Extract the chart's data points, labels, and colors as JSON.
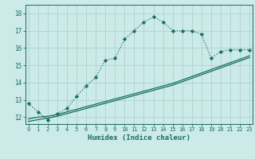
{
  "background_color": "#cceae8",
  "grid_color": "#aad4d0",
  "line_color": "#1a6e60",
  "x_label": "Humidex (Indice chaleur)",
  "x_ticks": [
    0,
    1,
    2,
    3,
    4,
    5,
    6,
    7,
    8,
    9,
    10,
    11,
    12,
    13,
    14,
    15,
    16,
    17,
    18,
    19,
    20,
    21,
    22,
    23
  ],
  "y_ticks": [
    12,
    13,
    14,
    15,
    16,
    17,
    18
  ],
  "ylim": [
    11.6,
    18.5
  ],
  "xlim": [
    -0.3,
    23.3
  ],
  "curve1_x": [
    0,
    1,
    2,
    3,
    4,
    5,
    6,
    7,
    8,
    9,
    10,
    11,
    12,
    13,
    14,
    15,
    16,
    17,
    18,
    19,
    20,
    21,
    22,
    23
  ],
  "curve1_y": [
    12.8,
    12.3,
    11.85,
    12.2,
    12.5,
    13.2,
    13.8,
    14.3,
    15.3,
    15.4,
    16.5,
    17.0,
    17.5,
    17.8,
    17.5,
    17.0,
    17.0,
    17.0,
    16.8,
    15.4,
    15.8,
    15.9,
    15.9,
    15.9
  ],
  "curve2_x": [
    0,
    1,
    2,
    3,
    4,
    5,
    6,
    7,
    8,
    9,
    10,
    11,
    12,
    13,
    14,
    15,
    16,
    17,
    18,
    19,
    20,
    21,
    22,
    23
  ],
  "curve2_y": [
    11.9,
    12.0,
    12.05,
    12.15,
    12.3,
    12.45,
    12.6,
    12.75,
    12.9,
    13.05,
    13.2,
    13.35,
    13.5,
    13.65,
    13.8,
    13.95,
    14.15,
    14.35,
    14.55,
    14.75,
    14.95,
    15.15,
    15.35,
    15.55
  ],
  "curve3_x": [
    0,
    1,
    2,
    3,
    4,
    5,
    6,
    7,
    8,
    9,
    10,
    11,
    12,
    13,
    14,
    15,
    16,
    17,
    18,
    19,
    20,
    21,
    22,
    23
  ],
  "curve3_y": [
    11.75,
    11.85,
    11.95,
    12.05,
    12.2,
    12.35,
    12.5,
    12.65,
    12.8,
    12.95,
    13.1,
    13.25,
    13.4,
    13.55,
    13.7,
    13.85,
    14.05,
    14.25,
    14.45,
    14.65,
    14.85,
    15.05,
    15.25,
    15.45
  ]
}
